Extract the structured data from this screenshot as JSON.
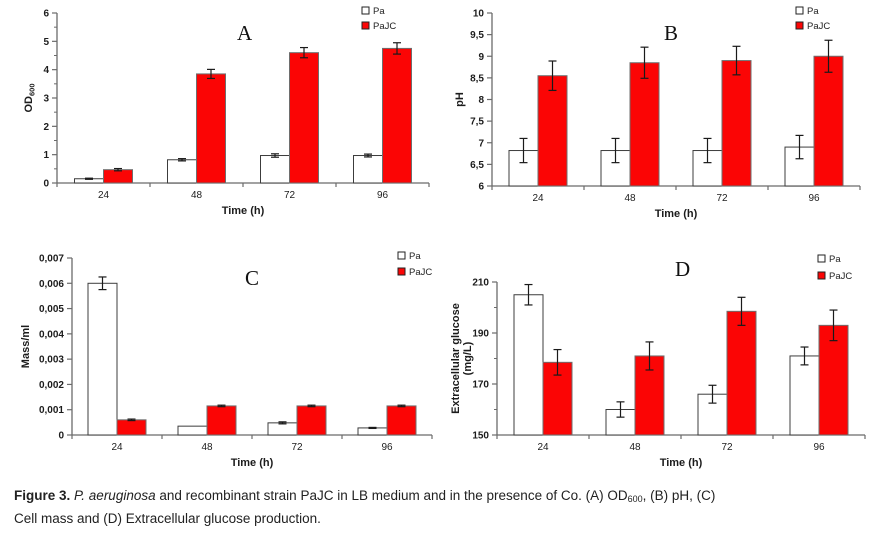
{
  "figure": {
    "caption": {
      "segments": [
        {
          "text": "Figure 3.",
          "bold": true
        },
        {
          "text": " "
        },
        {
          "text": "P. aeruginosa",
          "italic": true
        },
        {
          "text": " and recombinant strain PaJC in LB medium and in the presence of Co. (A) OD"
        },
        {
          "text": "600",
          "sub": true
        },
        {
          "text": ", (B) pH, (C)"
        },
        {
          "text": "",
          "break": true
        },
        {
          "text": "Cell mass and (D) Extracellular glucose production."
        }
      ]
    }
  },
  "colors": {
    "pa_fill": "#ffffff",
    "pajc_fill": "#fb0505",
    "bar_border": "#6e6e6e",
    "pa_border": "#3c3c3c",
    "axis": "#6b6b6b",
    "error": "#1a1a1a",
    "text": "#1c1c1c"
  },
  "legend": {
    "labels": [
      "Pa",
      "PaJC"
    ]
  },
  "chart_data": [
    {
      "panel_label": "A",
      "type": "bar",
      "title": "",
      "xlabel": "Time (h)",
      "ylabel_lines": [
        [
          {
            "text": "OD"
          },
          {
            "text": "600",
            "sub": true
          }
        ]
      ],
      "categories": [
        "24",
        "48",
        "72",
        "96"
      ],
      "ylim": [
        0,
        6
      ],
      "yticks": [
        {
          "v": 0,
          "label": "0"
        },
        {
          "v": 1,
          "label": "1"
        },
        {
          "v": 2,
          "label": "2"
        },
        {
          "v": 3,
          "label": "3"
        },
        {
          "v": 4,
          "label": "4"
        },
        {
          "v": 5,
          "label": "5"
        },
        {
          "v": 6,
          "label": "6"
        }
      ],
      "minor_step": 0.5,
      "grid": false,
      "legend_position": "top-right",
      "series": [
        {
          "name": "Pa",
          "values": [
            0.15,
            0.82,
            0.97,
            0.97
          ],
          "errors": [
            0.02,
            0.04,
            0.06,
            0.05
          ]
        },
        {
          "name": "PaJC",
          "values": [
            0.47,
            3.85,
            4.6,
            4.75
          ],
          "errors": [
            0.04,
            0.16,
            0.18,
            0.2
          ]
        }
      ]
    },
    {
      "panel_label": "B",
      "type": "bar",
      "title": "",
      "xlabel": "Time (h)",
      "ylabel_lines": [
        [
          {
            "text": "pH"
          }
        ]
      ],
      "categories": [
        "24",
        "48",
        "72",
        "96"
      ],
      "ylim": [
        6,
        10
      ],
      "yticks": [
        {
          "v": 6,
          "label": "6"
        },
        {
          "v": 6.5,
          "label": "6,5"
        },
        {
          "v": 7,
          "label": "7"
        },
        {
          "v": 7.5,
          "label": "7,5"
        },
        {
          "v": 8,
          "label": "8"
        },
        {
          "v": 8.5,
          "label": "8,5"
        },
        {
          "v": 9,
          "label": "9"
        },
        {
          "v": 9.5,
          "label": "9,5"
        },
        {
          "v": 10,
          "label": "10"
        }
      ],
      "minor_step": null,
      "grid": false,
      "legend_position": "top-right",
      "series": [
        {
          "name": "Pa",
          "values": [
            6.82,
            6.82,
            6.82,
            6.9
          ],
          "errors": [
            0.28,
            0.28,
            0.28,
            0.27
          ]
        },
        {
          "name": "PaJC",
          "values": [
            8.55,
            8.85,
            8.9,
            9.0
          ],
          "errors": [
            0.34,
            0.36,
            0.33,
            0.37
          ]
        }
      ]
    },
    {
      "panel_label": "C",
      "type": "bar",
      "title": "",
      "xlabel": "Time (h)",
      "ylabel_lines": [
        [
          {
            "text": "Mass/ml"
          }
        ]
      ],
      "categories": [
        "24",
        "48",
        "72",
        "96"
      ],
      "ylim": [
        0,
        0.007
      ],
      "yticks": [
        {
          "v": 0,
          "label": "0"
        },
        {
          "v": 0.001,
          "label": "0,001"
        },
        {
          "v": 0.002,
          "label": "0,002"
        },
        {
          "v": 0.003,
          "label": "0,003"
        },
        {
          "v": 0.004,
          "label": "0,004"
        },
        {
          "v": 0.005,
          "label": "0,005"
        },
        {
          "v": 0.006,
          "label": "0,006"
        },
        {
          "v": 0.007,
          "label": "0,007"
        }
      ],
      "minor_step": null,
      "grid": false,
      "legend_position": "top-right",
      "series": [
        {
          "name": "Pa",
          "values": [
            0.006,
            0.00035,
            0.00048,
            0.00028
          ],
          "errors": [
            0.00025,
            0,
            4e-05,
            2e-05
          ]
        },
        {
          "name": "PaJC",
          "values": [
            0.0006,
            0.00115,
            0.00115,
            0.00115
          ],
          "errors": [
            3e-05,
            3e-05,
            3e-05,
            3e-05
          ]
        }
      ]
    },
    {
      "panel_label": "D",
      "type": "bar",
      "title": "",
      "xlabel": "Time (h)",
      "ylabel_lines": [
        [
          {
            "text": "Extracellular glucose"
          }
        ],
        [
          {
            "text": "(mg/L)"
          }
        ]
      ],
      "categories": [
        "24",
        "48",
        "72",
        "96"
      ],
      "ylim": [
        150,
        210
      ],
      "yticks": [
        {
          "v": 150,
          "label": "150"
        },
        {
          "v": 170,
          "label": "170"
        },
        {
          "v": 190,
          "label": "190"
        },
        {
          "v": 210,
          "label": "210"
        }
      ],
      "minor_step": 10,
      "grid": false,
      "legend_position": "top-right",
      "series": [
        {
          "name": "Pa",
          "values": [
            205,
            160,
            166,
            181
          ],
          "errors": [
            4,
            3,
            3.5,
            3.5
          ]
        },
        {
          "name": "PaJC",
          "values": [
            178.5,
            181,
            198.5,
            193
          ],
          "errors": [
            5,
            5.5,
            5.5,
            6
          ]
        }
      ]
    }
  ]
}
